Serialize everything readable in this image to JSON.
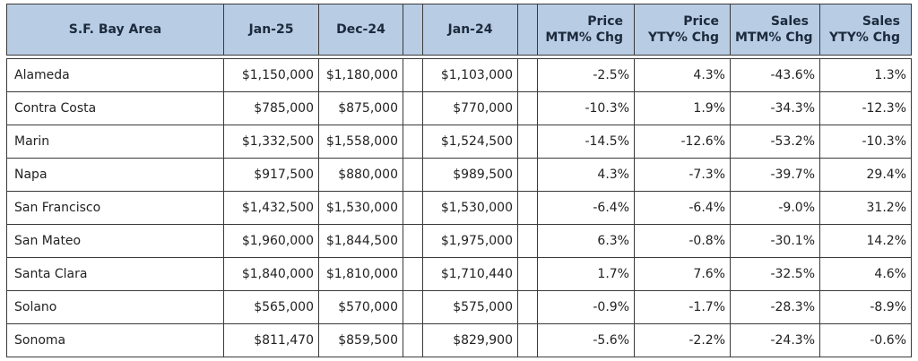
{
  "table": {
    "header": [
      "S.F. Bay Area",
      "Jan-25",
      "Dec-24",
      "Jan-24",
      [
        "Price",
        "MTM% Chg"
      ],
      [
        "Price",
        "YTY% Chg"
      ],
      [
        "Sales",
        "MTM% Chg"
      ],
      [
        "Sales",
        "YTY% Chg"
      ]
    ],
    "rows": [
      [
        "Alameda",
        "$1,150,000",
        "$1,180,000",
        "$1,103,000",
        "-2.5%",
        "4.3%",
        "-43.6%",
        "1.3%"
      ],
      [
        "Contra Costa",
        "$785,000",
        "$875,000",
        "$770,000",
        "-10.3%",
        "1.9%",
        "-34.3%",
        "-12.3%"
      ],
      [
        "Marin",
        "$1,332,500",
        "$1,558,000",
        "$1,524,500",
        "-14.5%",
        "-12.6%",
        "-53.2%",
        "-10.3%"
      ],
      [
        "Napa",
        "$917,500",
        "$880,000",
        "$989,500",
        "4.3%",
        "-7.3%",
        "-39.7%",
        "29.4%"
      ],
      [
        "San Francisco",
        "$1,432,500",
        "$1,530,000",
        "$1,530,000",
        "-6.4%",
        "-6.4%",
        "-9.0%",
        "31.2%"
      ],
      [
        "San Mateo",
        "$1,960,000",
        "$1,844,500",
        "$1,975,000",
        "6.3%",
        "-0.8%",
        "-30.1%",
        "14.2%"
      ],
      [
        "Santa Clara",
        "$1,840,000",
        "$1,810,000",
        "$1,710,440",
        "1.7%",
        "7.6%",
        "-32.5%",
        "4.6%"
      ],
      [
        "Solano",
        "$565,000",
        "$570,000",
        "$575,000",
        "-0.9%",
        "-1.7%",
        "-28.3%",
        "-8.9%"
      ],
      [
        "Sonoma",
        "$811,470",
        "$859,500",
        "$829,900",
        "-5.6%",
        "-2.2%",
        "-24.3%",
        "-0.6%"
      ]
    ]
  }
}
